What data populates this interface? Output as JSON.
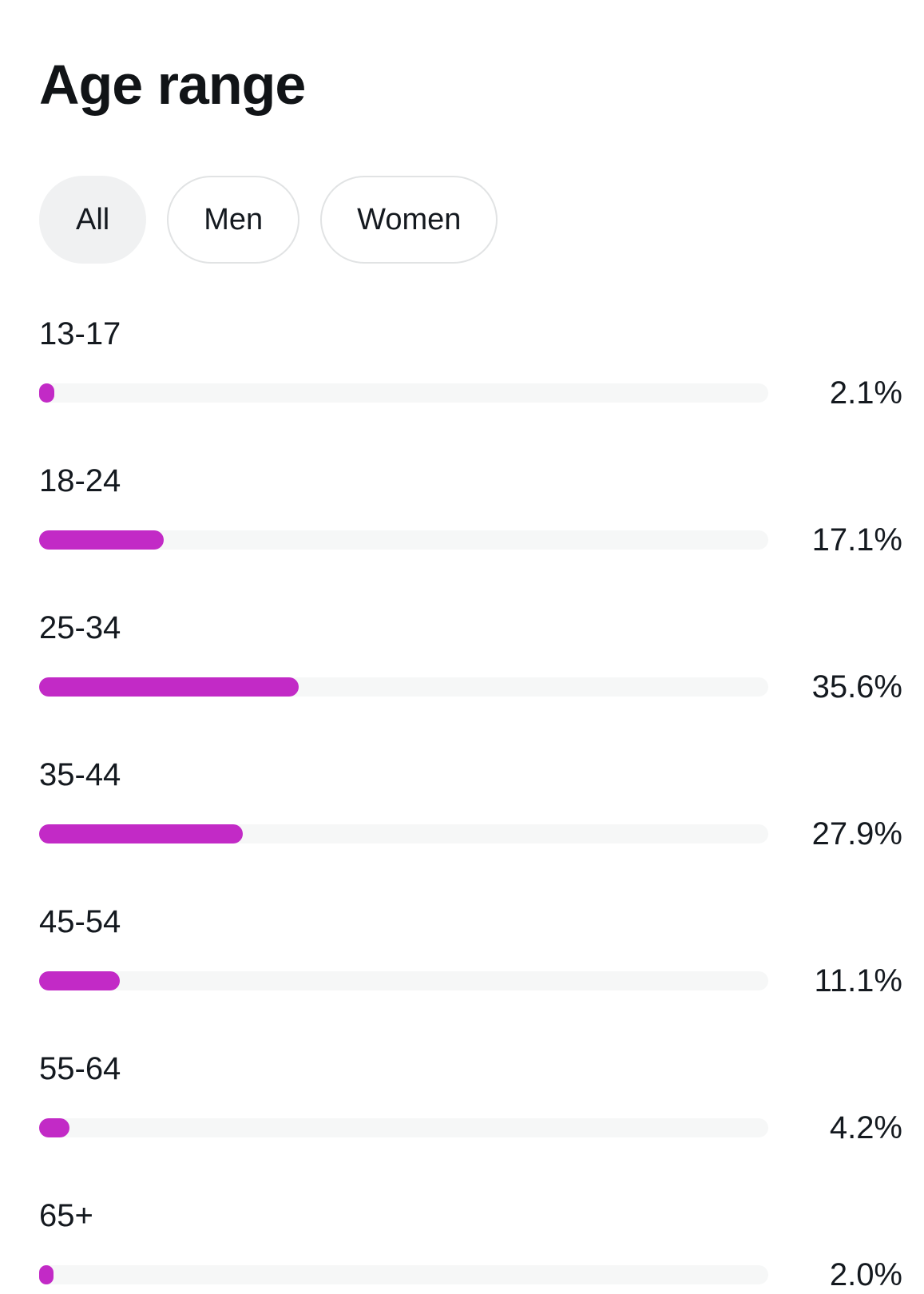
{
  "header": {
    "title": "Age range"
  },
  "colors": {
    "accent": "#c22ac6",
    "track": "#f6f7f7",
    "text": "#14191f",
    "pill_border": "#e1e3e4",
    "pill_selected_bg": "#f0f1f2"
  },
  "filters": [
    {
      "label": "All",
      "selected": true
    },
    {
      "label": "Men",
      "selected": false
    },
    {
      "label": "Women",
      "selected": false
    }
  ],
  "chart_data": {
    "type": "bar",
    "orientation": "horizontal",
    "title": "Age range",
    "categories": [
      "13-17",
      "18-24",
      "25-34",
      "35-44",
      "45-54",
      "55-64",
      "65+"
    ],
    "values": [
      2.1,
      17.1,
      35.6,
      27.9,
      11.1,
      4.2,
      2.0
    ],
    "value_labels": [
      "2.1%",
      "17.1%",
      "35.6%",
      "27.9%",
      "11.1%",
      "4.2%",
      "2.0%"
    ],
    "unit": "%",
    "xlim": [
      0,
      100
    ],
    "grid": false,
    "legend": "none",
    "bar_color": "#c22ac6"
  }
}
